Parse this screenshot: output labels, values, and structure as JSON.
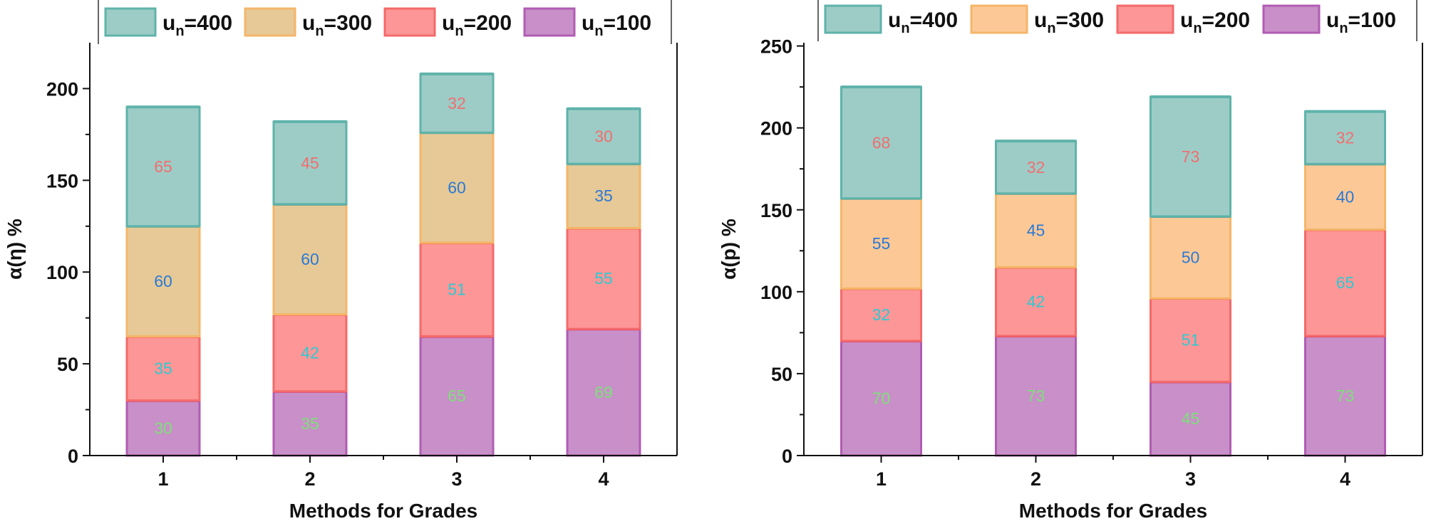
{
  "chart_data": [
    {
      "type": "bar",
      "stacked": true,
      "title": "",
      "xlabel": "Methods for Grades",
      "ylabel": "α(η) %",
      "categories": [
        "1",
        "2",
        "3",
        "4"
      ],
      "ylim": [
        0,
        225
      ],
      "yticks": [
        0,
        50,
        100,
        150,
        200
      ],
      "legend_position": "top",
      "series": [
        {
          "name": "u_n=100",
          "legend_main": "u",
          "legend_sub": "n",
          "legend_suffix": "=100",
          "values": [
            30,
            35,
            65,
            69
          ],
          "color": "#c88fc8",
          "edge": "#b15cb3",
          "top_edge": "#d92f63",
          "label_color": "#7ee07a"
        },
        {
          "name": "u_n=200",
          "legend_main": "u",
          "legend_sub": "n",
          "legend_suffix": "=200",
          "values": [
            35,
            42,
            51,
            55
          ],
          "color": "#fd9696",
          "edge": "#f46a6a",
          "top_edge": "#fb5c38",
          "label_color": "#2ec9d3"
        },
        {
          "name": "u_n=300",
          "legend_main": "u",
          "legend_sub": "n",
          "legend_suffix": "=300",
          "values": [
            60,
            60,
            60,
            35
          ],
          "color": "#e6c996",
          "edge": "#f4b66a",
          "top_edge": "#5e9c8c",
          "label_color": "#2b79d6"
        },
        {
          "name": "u_n=400",
          "legend_main": "u",
          "legend_sub": "n",
          "legend_suffix": "=400",
          "values": [
            65,
            45,
            32,
            30
          ],
          "color": "#9dccc7",
          "edge": "#5fb3aa",
          "top_edge": "#5fb3aa",
          "label_color": "#ef6f6f"
        }
      ]
    },
    {
      "type": "bar",
      "stacked": true,
      "title": "",
      "xlabel": "Methods for Grades",
      "ylabel": "α(p) %",
      "categories": [
        "1",
        "2",
        "3",
        "4"
      ],
      "ylim": [
        0,
        252
      ],
      "yticks": [
        0,
        50,
        100,
        150,
        200,
        250
      ],
      "legend_position": "top",
      "series": [
        {
          "name": "u_n=100",
          "legend_main": "u",
          "legend_sub": "n",
          "legend_suffix": "=100",
          "values": [
            70,
            73,
            45,
            73
          ],
          "color": "#c88fc8",
          "edge": "#b15cb3",
          "top_edge": "#d92f63",
          "label_color": "#7ee07a"
        },
        {
          "name": "u_n=200",
          "legend_main": "u",
          "legend_sub": "n",
          "legend_suffix": "=200",
          "values": [
            32,
            42,
            51,
            65
          ],
          "color": "#fd9696",
          "edge": "#f46a6a",
          "top_edge": "#fb5c38",
          "label_color": "#2ec9d3"
        },
        {
          "name": "u_n=300",
          "legend_main": "u",
          "legend_sub": "n",
          "legend_suffix": "=300",
          "values": [
            55,
            45,
            50,
            40
          ],
          "color": "#fcc996",
          "edge": "#f4b66a",
          "top_edge": "#5e9c8c",
          "label_color": "#2b79d6"
        },
        {
          "name": "u_n=400",
          "legend_main": "u",
          "legend_sub": "n",
          "legend_suffix": "=400",
          "values": [
            68,
            32,
            73,
            32
          ],
          "color": "#9dccc7",
          "edge": "#5fb3aa",
          "top_edge": "#5fb3aa",
          "label_color": "#ef6f6f"
        }
      ]
    }
  ]
}
